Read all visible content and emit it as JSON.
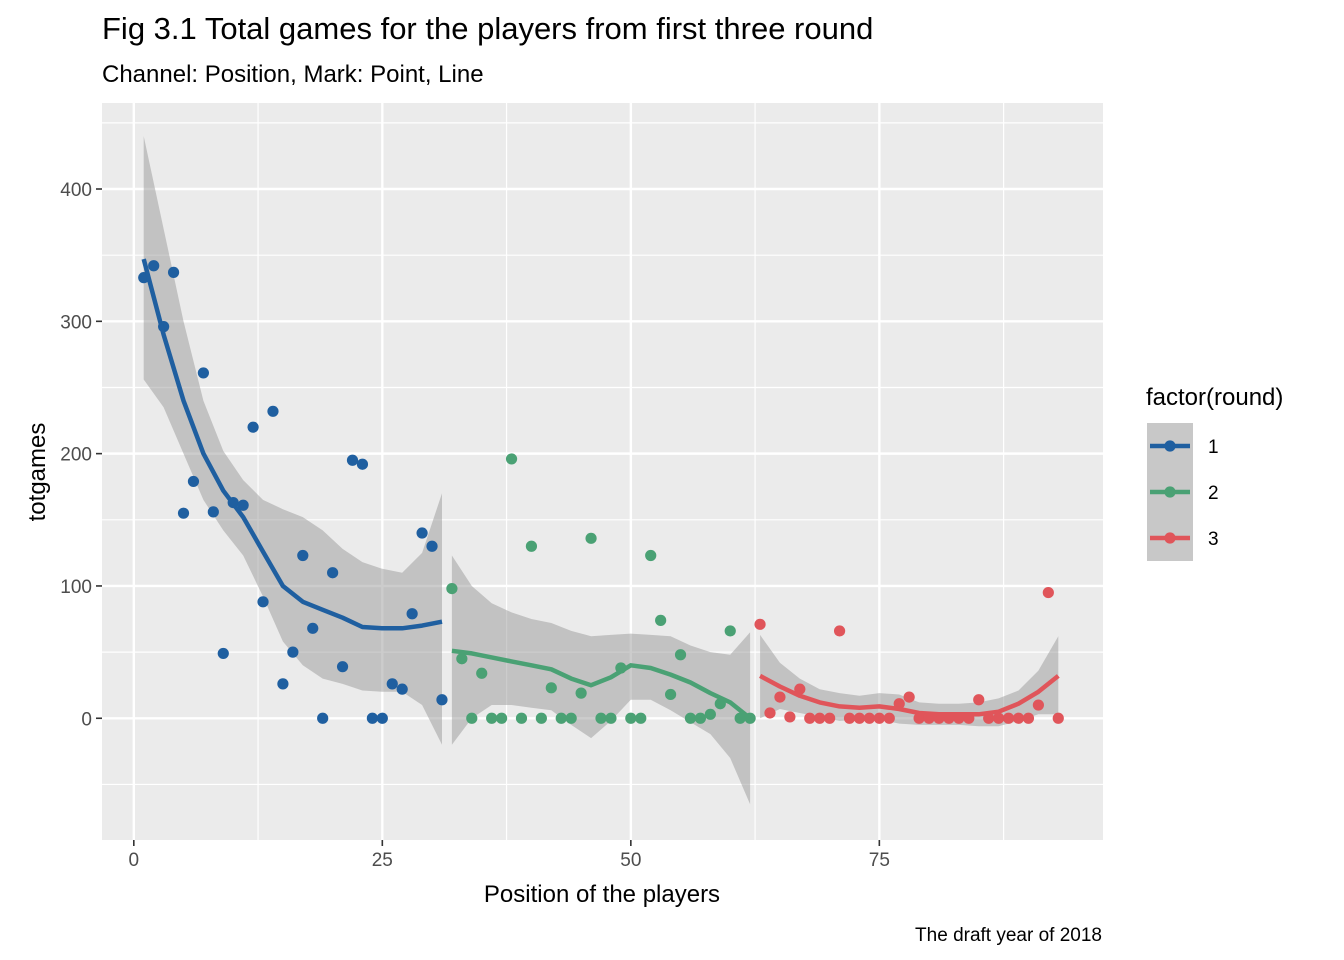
{
  "chart_data": {
    "type": "scatter",
    "title": "Fig 3.1 Total games for the players from first three round",
    "subtitle": "Channel: Position, Mark: Point, Line",
    "xlabel": "Position of the players",
    "ylabel": "totgames",
    "caption": "The draft year of 2018",
    "xlim": [
      -3.2,
      97.5
    ],
    "ylim": [
      -92,
      465
    ],
    "x_ticks": [
      0,
      25,
      50,
      75
    ],
    "x_tick_labels": [
      "0",
      "25",
      "50",
      "75"
    ],
    "y_ticks": [
      0,
      100,
      200,
      300,
      400
    ],
    "y_tick_labels": [
      "0",
      "100",
      "200",
      "300",
      "400"
    ],
    "grid": true,
    "legend": {
      "title": "factor(round)",
      "position": "right"
    },
    "series": [
      {
        "name": "1",
        "color": "#1f5fa0",
        "points": [
          [
            1,
            333
          ],
          [
            2,
            342
          ],
          [
            3,
            296
          ],
          [
            4,
            337
          ],
          [
            5,
            155
          ],
          [
            6,
            179
          ],
          [
            7,
            261
          ],
          [
            8,
            156
          ],
          [
            9,
            49
          ],
          [
            10,
            163
          ],
          [
            11,
            161
          ],
          [
            12,
            220
          ],
          [
            13,
            88
          ],
          [
            14,
            232
          ],
          [
            15,
            26
          ],
          [
            16,
            50
          ],
          [
            17,
            123
          ],
          [
            18,
            68
          ],
          [
            19,
            0
          ],
          [
            20,
            110
          ],
          [
            21,
            39
          ],
          [
            22,
            195
          ],
          [
            23,
            192
          ],
          [
            24,
            0
          ],
          [
            25,
            0
          ],
          [
            26,
            26
          ],
          [
            27,
            22
          ],
          [
            28,
            79
          ],
          [
            29,
            140
          ],
          [
            30,
            130
          ],
          [
            31,
            14
          ]
        ],
        "smooth": [
          [
            1,
            347
          ],
          [
            3,
            290
          ],
          [
            5,
            240
          ],
          [
            7,
            200
          ],
          [
            9,
            172
          ],
          [
            11,
            152
          ],
          [
            13,
            126
          ],
          [
            15,
            100
          ],
          [
            17,
            88
          ],
          [
            19,
            82
          ],
          [
            21,
            76
          ],
          [
            23,
            69
          ],
          [
            25,
            68
          ],
          [
            27,
            68
          ],
          [
            29,
            70
          ],
          [
            31,
            73
          ]
        ],
        "band_upper": [
          [
            1,
            440
          ],
          [
            3,
            370
          ],
          [
            5,
            300
          ],
          [
            7,
            240
          ],
          [
            9,
            202
          ],
          [
            11,
            180
          ],
          [
            13,
            165
          ],
          [
            15,
            158
          ],
          [
            17,
            152
          ],
          [
            19,
            142
          ],
          [
            21,
            128
          ],
          [
            23,
            118
          ],
          [
            25,
            113
          ],
          [
            27,
            110
          ],
          [
            29,
            125
          ],
          [
            31,
            170
          ]
        ],
        "band_lower": [
          [
            1,
            256
          ],
          [
            3,
            235
          ],
          [
            5,
            200
          ],
          [
            7,
            165
          ],
          [
            9,
            142
          ],
          [
            11,
            123
          ],
          [
            13,
            92
          ],
          [
            15,
            58
          ],
          [
            17,
            40
          ],
          [
            19,
            30
          ],
          [
            21,
            26
          ],
          [
            23,
            21
          ],
          [
            25,
            20
          ],
          [
            27,
            20
          ],
          [
            29,
            10
          ],
          [
            31,
            -20
          ]
        ]
      },
      {
        "name": "2",
        "color": "#4aa174",
        "points": [
          [
            32,
            98
          ],
          [
            33,
            45
          ],
          [
            34,
            0
          ],
          [
            35,
            34
          ],
          [
            36,
            0
          ],
          [
            37,
            0
          ],
          [
            38,
            196
          ],
          [
            39,
            0
          ],
          [
            40,
            130
          ],
          [
            41,
            0
          ],
          [
            42,
            23
          ],
          [
            43,
            0
          ],
          [
            44,
            0
          ],
          [
            45,
            19
          ],
          [
            46,
            136
          ],
          [
            47,
            0
          ],
          [
            48,
            0
          ],
          [
            49,
            38
          ],
          [
            50,
            0
          ],
          [
            51,
            0
          ],
          [
            52,
            123
          ],
          [
            53,
            74
          ],
          [
            54,
            18
          ],
          [
            55,
            48
          ],
          [
            56,
            0
          ],
          [
            57,
            0
          ],
          [
            58,
            3
          ],
          [
            59,
            11
          ],
          [
            60,
            66
          ],
          [
            61,
            0
          ],
          [
            62,
            0
          ]
        ],
        "smooth": [
          [
            32,
            51
          ],
          [
            34,
            49
          ],
          [
            36,
            46
          ],
          [
            38,
            43
          ],
          [
            40,
            40
          ],
          [
            42,
            37
          ],
          [
            44,
            30
          ],
          [
            46,
            25
          ],
          [
            48,
            31
          ],
          [
            50,
            40
          ],
          [
            52,
            38
          ],
          [
            54,
            33
          ],
          [
            56,
            27
          ],
          [
            58,
            19
          ],
          [
            60,
            12
          ],
          [
            62,
            0
          ]
        ],
        "band_upper": [
          [
            32,
            123
          ],
          [
            34,
            100
          ],
          [
            36,
            87
          ],
          [
            38,
            80
          ],
          [
            40,
            75
          ],
          [
            42,
            72
          ],
          [
            44,
            66
          ],
          [
            46,
            62
          ],
          [
            48,
            63
          ],
          [
            50,
            64
          ],
          [
            52,
            63
          ],
          [
            54,
            62
          ],
          [
            56,
            55
          ],
          [
            58,
            50
          ],
          [
            60,
            48
          ],
          [
            62,
            65
          ]
        ],
        "band_lower": [
          [
            32,
            -20
          ],
          [
            34,
            0
          ],
          [
            36,
            10
          ],
          [
            38,
            10
          ],
          [
            40,
            8
          ],
          [
            42,
            6
          ],
          [
            44,
            -5
          ],
          [
            46,
            -15
          ],
          [
            48,
            -2
          ],
          [
            50,
            14
          ],
          [
            52,
            14
          ],
          [
            54,
            6
          ],
          [
            56,
            -3
          ],
          [
            58,
            -12
          ],
          [
            60,
            -30
          ],
          [
            62,
            -65
          ]
        ]
      },
      {
        "name": "3",
        "color": "#e0555a",
        "points": [
          [
            63,
            71
          ],
          [
            64,
            4
          ],
          [
            65,
            16
          ],
          [
            66,
            1
          ],
          [
            67,
            22
          ],
          [
            68,
            0
          ],
          [
            69,
            0
          ],
          [
            70,
            0
          ],
          [
            71,
            66
          ],
          [
            72,
            0
          ],
          [
            73,
            0
          ],
          [
            74,
            0
          ],
          [
            75,
            0
          ],
          [
            76,
            0
          ],
          [
            77,
            11
          ],
          [
            78,
            16
          ],
          [
            79,
            0
          ],
          [
            80,
            0
          ],
          [
            81,
            0
          ],
          [
            82,
            0
          ],
          [
            83,
            0
          ],
          [
            84,
            0
          ],
          [
            85,
            14
          ],
          [
            86,
            0
          ],
          [
            87,
            0
          ],
          [
            88,
            0
          ],
          [
            89,
            0
          ],
          [
            90,
            0
          ],
          [
            91,
            10
          ],
          [
            92,
            95
          ],
          [
            93,
            0
          ]
        ],
        "smooth": [
          [
            63,
            32
          ],
          [
            65,
            24
          ],
          [
            67,
            17
          ],
          [
            69,
            12
          ],
          [
            71,
            9
          ],
          [
            73,
            8
          ],
          [
            75,
            9
          ],
          [
            77,
            7
          ],
          [
            79,
            4
          ],
          [
            81,
            3
          ],
          [
            83,
            3
          ],
          [
            85,
            3
          ],
          [
            87,
            5
          ],
          [
            89,
            11
          ],
          [
            91,
            20
          ],
          [
            93,
            32
          ]
        ],
        "band_upper": [
          [
            63,
            63
          ],
          [
            65,
            42
          ],
          [
            67,
            30
          ],
          [
            69,
            22
          ],
          [
            71,
            19
          ],
          [
            73,
            17
          ],
          [
            75,
            19
          ],
          [
            77,
            18
          ],
          [
            79,
            12
          ],
          [
            81,
            11
          ],
          [
            83,
            11
          ],
          [
            85,
            12
          ],
          [
            87,
            15
          ],
          [
            89,
            21
          ],
          [
            91,
            36
          ],
          [
            93,
            62
          ]
        ],
        "band_lower": [
          [
            63,
            0
          ],
          [
            65,
            7
          ],
          [
            67,
            4
          ],
          [
            69,
            1
          ],
          [
            71,
            -2
          ],
          [
            73,
            -1
          ],
          [
            75,
            -1
          ],
          [
            77,
            -4
          ],
          [
            79,
            -5
          ],
          [
            81,
            -5
          ],
          [
            83,
            -5
          ],
          [
            85,
            -6
          ],
          [
            87,
            -6
          ],
          [
            89,
            -2
          ],
          [
            91,
            3
          ],
          [
            93,
            3
          ]
        ]
      }
    ]
  }
}
